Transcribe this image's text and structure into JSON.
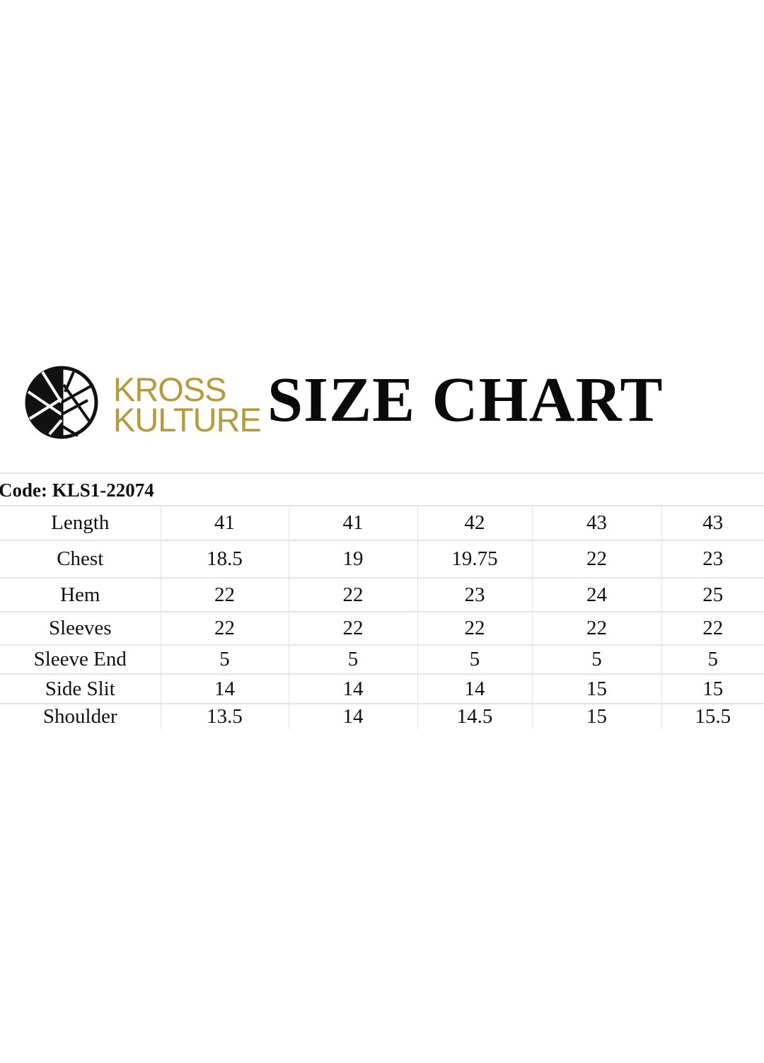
{
  "brand": {
    "line1": "KROSS",
    "line2": "KULTURE",
    "color": "#b59a3e",
    "logo_icon": "kross-kulture-circle-logo"
  },
  "title": "SIZE CHART",
  "code": "Code: KLS1-22074",
  "table": {
    "rows": [
      {
        "label": "Length",
        "values": [
          "41",
          "41",
          "42",
          "43",
          "43"
        ]
      },
      {
        "label": "Chest",
        "values": [
          "18.5",
          "19",
          "19.75",
          "22",
          "23"
        ]
      },
      {
        "label": "Hem",
        "values": [
          "22",
          "22",
          "23",
          "24",
          "25"
        ]
      },
      {
        "label": "Sleeves",
        "values": [
          "22",
          "22",
          "22",
          "22",
          "22"
        ]
      },
      {
        "label": "Sleeve End",
        "values": [
          "5",
          "5",
          "5",
          "5",
          "5"
        ]
      },
      {
        "label": "Side Slit",
        "values": [
          "14",
          "14",
          "14",
          "15",
          "15"
        ]
      },
      {
        "label": "Shoulder",
        "values": [
          "13.5",
          "14",
          "14.5",
          "15",
          "15.5"
        ]
      }
    ]
  }
}
